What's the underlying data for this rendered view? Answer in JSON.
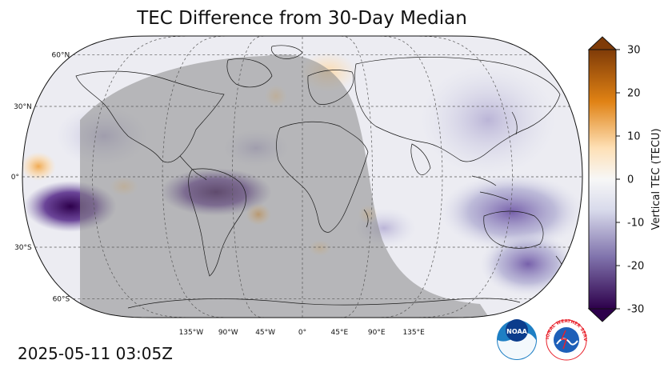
{
  "title": "TEC Difference from 30-Day Median",
  "timestamp": "2025-05-11 03:05Z",
  "map": {
    "projection": "robinson",
    "lat_labels": [
      "60°N",
      "30°N",
      "0°",
      "30°S",
      "60°S"
    ],
    "lon_labels": [
      "135°W",
      "90°W",
      "45°W",
      "0°",
      "45°E",
      "90°E",
      "135°E"
    ],
    "night_shading": true
  },
  "colorbar": {
    "label": "Vertical TEC (TECU)",
    "ticks": [
      "30",
      "20",
      "10",
      "0",
      "-10",
      "-20",
      "-30"
    ],
    "range": [
      -30,
      30
    ],
    "extend": "both",
    "colors": {
      "high": "#7f3b08",
      "mid_high": "#e08214",
      "light_high": "#fee0b6",
      "zero": "#f7f7f7",
      "light_low": "#d8daeb",
      "mid_low": "#8073ac",
      "low": "#2d004b"
    }
  },
  "logos": {
    "noaa": {
      "text": "NOAA",
      "color": "#1e7fc4"
    },
    "nws": {
      "text": "NATIONAL WEATHER SERVICE",
      "color": "#e8202a"
    }
  }
}
